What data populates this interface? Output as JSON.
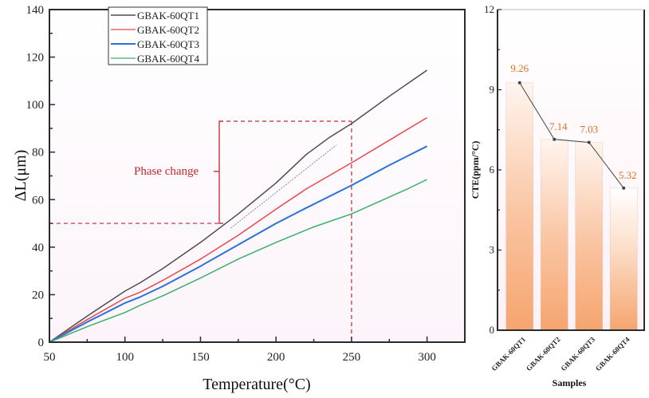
{
  "chart_data": [
    {
      "type": "line",
      "title": "",
      "xlabel": "Temperature(°C)",
      "ylabel": "ΔL(μm)",
      "xlim": [
        50,
        325
      ],
      "ylim": [
        0,
        140
      ],
      "xticks": [
        50,
        100,
        150,
        200,
        250,
        300
      ],
      "yticks": [
        0,
        20,
        40,
        60,
        80,
        100,
        120,
        140
      ],
      "grid": false,
      "legend_position": "top-left",
      "series": [
        {
          "name": "GBAK-60QT1",
          "color": "#4d4d4d",
          "x": [
            50,
            75,
            100,
            110,
            125,
            150,
            175,
            200,
            220,
            235,
            250,
            275,
            300
          ],
          "y": [
            0,
            11,
            21.5,
            25,
            31,
            42,
            54,
            67,
            79,
            86,
            92,
            103.5,
            114.5
          ]
        },
        {
          "name": "GBAK-60QT2",
          "color": "#e8484d",
          "x": [
            50,
            75,
            100,
            110,
            125,
            150,
            175,
            200,
            220,
            250,
            275,
            300
          ],
          "y": [
            0,
            9.5,
            18.5,
            21,
            26,
            35,
            45,
            56,
            64.5,
            75.5,
            85,
            94.5
          ]
        },
        {
          "name": "GBAK-60QT3",
          "color": "#2a72d8",
          "x": [
            50,
            75,
            100,
            110,
            125,
            150,
            175,
            200,
            220,
            250,
            275,
            300
          ],
          "y": [
            0,
            8.5,
            16.5,
            19,
            23.5,
            32,
            41,
            50,
            56.5,
            66,
            74.5,
            82.5
          ]
        },
        {
          "name": "GBAK-60QT4",
          "color": "#3cae6a",
          "x": [
            50,
            75,
            100,
            110,
            125,
            150,
            175,
            200,
            225,
            250,
            287,
            300
          ],
          "y": [
            0,
            6.5,
            12.5,
            15.5,
            19.5,
            27,
            35,
            42,
            48.5,
            54,
            64.5,
            68.5
          ]
        }
      ],
      "annotations": [
        {
          "text": "Phase change",
          "color": "#c0282d"
        },
        {
          "type": "dashed-guide",
          "x": 250,
          "y_low": 50,
          "y_high": 93
        }
      ],
      "tangent_line": {
        "x": [
          170,
          240
        ],
        "y": [
          48,
          83
        ]
      }
    },
    {
      "type": "bar",
      "title": "",
      "xlabel": "Samples",
      "ylabel": "CTE(ppm/°C)",
      "categories": [
        "GBAK-60QT1",
        "GBAK-60QT2",
        "GBAK-60QT3",
        "GBAK-60QT4"
      ],
      "values": [
        9.26,
        7.14,
        7.03,
        5.32
      ],
      "data_labels": [
        "9.26",
        "7.14",
        "7.03",
        "5.32"
      ],
      "ylim": [
        0,
        12
      ],
      "yticks": [
        0,
        3,
        6,
        9,
        12
      ],
      "overlay_line": true,
      "bar_color": "#f5a36b",
      "label_color": "#e07020"
    }
  ],
  "legend": {
    "entries": [
      "GBAK-60QT1",
      "GBAK-60QT2",
      "GBAK-60QT3",
      "GBAK-60QT4"
    ]
  }
}
